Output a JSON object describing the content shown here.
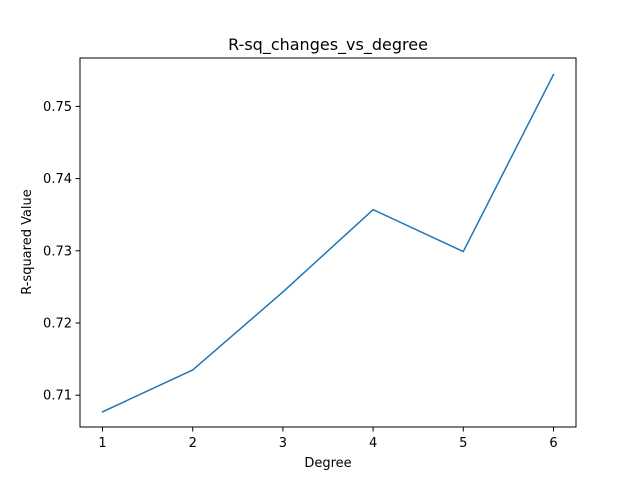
{
  "chart_data": {
    "type": "line",
    "title": "R-sq_changes_vs_degree",
    "xlabel": "Degree",
    "ylabel": "R-squared Value",
    "x": [
      1,
      2,
      3,
      4,
      5,
      6
    ],
    "series": [
      {
        "values": [
          0.7077,
          0.7135,
          0.7243,
          0.7357,
          0.7299,
          0.7544
        ],
        "color": "#1f77b4"
      }
    ],
    "xlim": [
      0.75,
      6.25
    ],
    "ylim": [
      0.7056,
      0.7567
    ],
    "xticks": [
      1,
      2,
      3,
      4,
      5,
      6
    ],
    "yticks": [
      0.71,
      0.72,
      0.73,
      0.74,
      0.75
    ],
    "xtick_labels": [
      "1",
      "2",
      "3",
      "4",
      "5",
      "6"
    ],
    "ytick_labels": [
      "0.71",
      "0.72",
      "0.73",
      "0.74",
      "0.75"
    ],
    "grid": false,
    "legend": "none"
  }
}
